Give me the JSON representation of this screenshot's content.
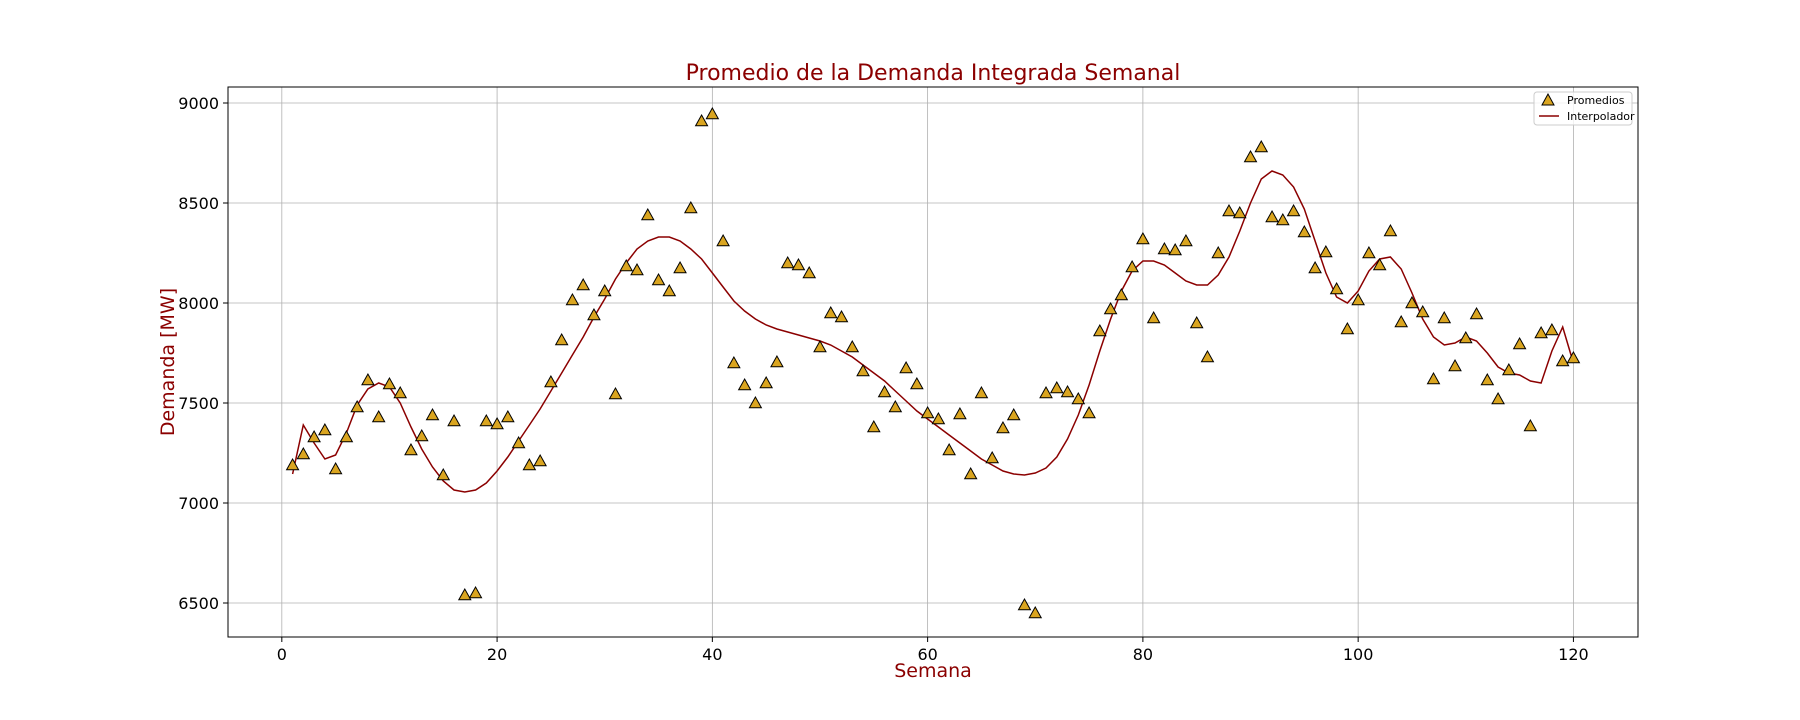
{
  "chart_data": {
    "type": "scatter",
    "title": "Promedio de la Demanda Integrada Semanal",
    "xlabel": "Semana",
    "ylabel": "Demanda [MW]",
    "xlim": [
      -5,
      126
    ],
    "ylim": [
      6330,
      9080
    ],
    "xticks": [
      0,
      20,
      40,
      60,
      80,
      100,
      120
    ],
    "yticks": [
      6500,
      7000,
      7500,
      8000,
      8500,
      9000
    ],
    "grid": true,
    "legend_position": "top-right",
    "series": [
      {
        "name": "Promedios",
        "kind": "scatter",
        "marker": "triangle",
        "color": "#DAA520",
        "edge_color": "#000000",
        "x": [
          1,
          2,
          3,
          4,
          5,
          6,
          7,
          8,
          9,
          10,
          11,
          12,
          13,
          14,
          15,
          16,
          17,
          18,
          19,
          20,
          21,
          22,
          23,
          24,
          25,
          26,
          27,
          28,
          29,
          30,
          31,
          32,
          33,
          34,
          35,
          36,
          37,
          38,
          39,
          40,
          41,
          42,
          43,
          44,
          45,
          46,
          47,
          48,
          49,
          50,
          51,
          52,
          53,
          54,
          55,
          56,
          57,
          58,
          59,
          60,
          61,
          62,
          63,
          64,
          65,
          66,
          67,
          68,
          69,
          70,
          71,
          72,
          73,
          74,
          75,
          76,
          77,
          78,
          79,
          80,
          81,
          82,
          83,
          84,
          85,
          86,
          87,
          88,
          89,
          90,
          91,
          92,
          93,
          94,
          95,
          96,
          97,
          98,
          99,
          100,
          101,
          102,
          103,
          104,
          105,
          106,
          107,
          108,
          109,
          110,
          111,
          112,
          113,
          114,
          115,
          116,
          117,
          118,
          119,
          120
        ],
        "y": [
          7190,
          7245,
          7330,
          7365,
          7170,
          7330,
          7480,
          7615,
          7430,
          7595,
          7550,
          7265,
          7335,
          7440,
          7140,
          7410,
          6540,
          6550,
          7410,
          7395,
          7430,
          7300,
          7190,
          7210,
          7605,
          7815,
          8015,
          8090,
          7940,
          8060,
          7545,
          8185,
          8165,
          8440,
          8115,
          8060,
          8175,
          8475,
          8910,
          8945,
          8310,
          7700,
          7590,
          7500,
          7600,
          7705,
          8200,
          8190,
          8150,
          7780,
          7950,
          7930,
          7780,
          7660,
          7380,
          7555,
          7480,
          7675,
          7595,
          7450,
          7420,
          7265,
          7445,
          7145,
          7550,
          7225,
          7375,
          7440,
          6490,
          6450,
          7550,
          7575,
          7555,
          7520,
          7450,
          7860,
          7970,
          8040,
          8180,
          8320,
          7925,
          8270,
          8265,
          8310,
          7900,
          7730,
          8250,
          8460,
          8450,
          8730,
          8780,
          8430,
          8415,
          8460,
          8355,
          8175,
          8255,
          8070,
          7870,
          8015,
          8250,
          8190,
          8360,
          7905,
          8000,
          7955,
          7620,
          7925,
          7685,
          7825,
          7945,
          7615,
          7520,
          7665,
          7795,
          7385,
          7850,
          7865,
          7710,
          7725
        ]
      },
      {
        "name": "Interpolador",
        "kind": "line",
        "color": "#8B0000",
        "x": [
          1,
          2,
          3,
          4,
          5,
          6,
          7,
          8,
          9,
          10,
          11,
          12,
          13,
          14,
          15,
          16,
          17,
          18,
          19,
          20,
          21,
          22,
          23,
          24,
          25,
          26,
          27,
          28,
          29,
          30,
          31,
          32,
          33,
          34,
          35,
          36,
          37,
          38,
          39,
          40,
          41,
          42,
          43,
          44,
          45,
          46,
          47,
          48,
          49,
          50,
          51,
          52,
          53,
          54,
          55,
          56,
          57,
          58,
          59,
          60,
          61,
          62,
          63,
          64,
          65,
          66,
          67,
          68,
          69,
          70,
          71,
          72,
          73,
          74,
          75,
          76,
          77,
          78,
          79,
          80,
          81,
          82,
          83,
          84,
          85,
          86,
          87,
          88,
          89,
          90,
          91,
          92,
          93,
          94,
          95,
          96,
          97,
          98,
          99,
          100,
          101,
          102,
          103,
          104,
          105,
          106,
          107,
          108,
          109,
          110,
          111,
          112,
          113,
          114,
          115,
          116,
          117,
          118,
          119,
          120
        ],
        "y": [
          7145,
          7390,
          7300,
          7220,
          7240,
          7350,
          7490,
          7570,
          7600,
          7580,
          7500,
          7380,
          7270,
          7180,
          7110,
          7065,
          7055,
          7065,
          7100,
          7160,
          7230,
          7310,
          7390,
          7470,
          7560,
          7650,
          7740,
          7830,
          7930,
          8020,
          8120,
          8200,
          8270,
          8310,
          8330,
          8330,
          8310,
          8270,
          8220,
          8150,
          8080,
          8010,
          7960,
          7920,
          7890,
          7870,
          7855,
          7840,
          7825,
          7810,
          7790,
          7760,
          7730,
          7690,
          7650,
          7610,
          7560,
          7510,
          7460,
          7420,
          7380,
          7340,
          7300,
          7260,
          7220,
          7190,
          7160,
          7145,
          7140,
          7150,
          7175,
          7230,
          7320,
          7440,
          7590,
          7760,
          7920,
          8060,
          8160,
          8210,
          8210,
          8190,
          8150,
          8110,
          8090,
          8090,
          8140,
          8230,
          8360,
          8500,
          8620,
          8660,
          8640,
          8580,
          8470,
          8310,
          8150,
          8030,
          8000,
          8060,
          8160,
          8220,
          8230,
          8170,
          8050,
          7920,
          7830,
          7790,
          7800,
          7830,
          7810,
          7750,
          7680,
          7650,
          7640,
          7610,
          7600,
          7760,
          7880,
          7700
        ]
      }
    ]
  }
}
